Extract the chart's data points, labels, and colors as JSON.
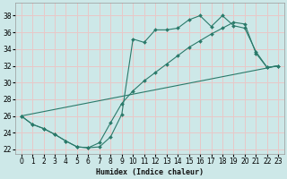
{
  "xlabel": "Humidex (Indice chaleur)",
  "background_color": "#cde8e8",
  "grid_color": "#e8c8c8",
  "line_color": "#2a7a6a",
  "xlim": [
    -0.5,
    23.5
  ],
  "ylim": [
    21.5,
    39.5
  ],
  "yticks": [
    22,
    24,
    26,
    28,
    30,
    32,
    34,
    36,
    38
  ],
  "xticks": [
    0,
    1,
    2,
    3,
    4,
    5,
    6,
    7,
    8,
    9,
    10,
    11,
    12,
    13,
    14,
    15,
    16,
    17,
    18,
    19,
    20,
    21,
    22,
    23
  ],
  "line1_x": [
    0,
    1,
    2,
    3,
    4,
    5,
    6,
    7,
    8,
    9,
    10,
    11,
    12,
    13,
    14,
    15,
    16,
    17,
    18,
    19,
    20,
    21,
    22,
    23
  ],
  "line1_y": [
    26.0,
    25.0,
    24.5,
    23.8,
    23.0,
    22.3,
    22.2,
    22.3,
    23.5,
    26.2,
    35.2,
    34.8,
    36.3,
    36.3,
    36.5,
    37.5,
    38.0,
    36.7,
    38.0,
    36.8,
    36.5,
    33.7,
    31.8,
    32.0
  ],
  "line2_x": [
    0,
    1,
    2,
    3,
    4,
    5,
    6,
    7,
    8,
    9,
    10,
    11,
    12,
    13,
    14,
    15,
    16,
    17,
    18,
    19,
    20,
    21,
    22,
    23
  ],
  "line2_y": [
    26.0,
    25.0,
    24.5,
    23.8,
    23.0,
    22.3,
    22.2,
    22.8,
    25.2,
    27.5,
    29.0,
    30.2,
    31.2,
    32.2,
    33.2,
    34.2,
    35.0,
    35.8,
    36.5,
    37.2,
    37.0,
    33.5,
    31.8,
    32.0
  ],
  "line3_x": [
    0,
    23
  ],
  "line3_y": [
    26.0,
    32.0
  ]
}
